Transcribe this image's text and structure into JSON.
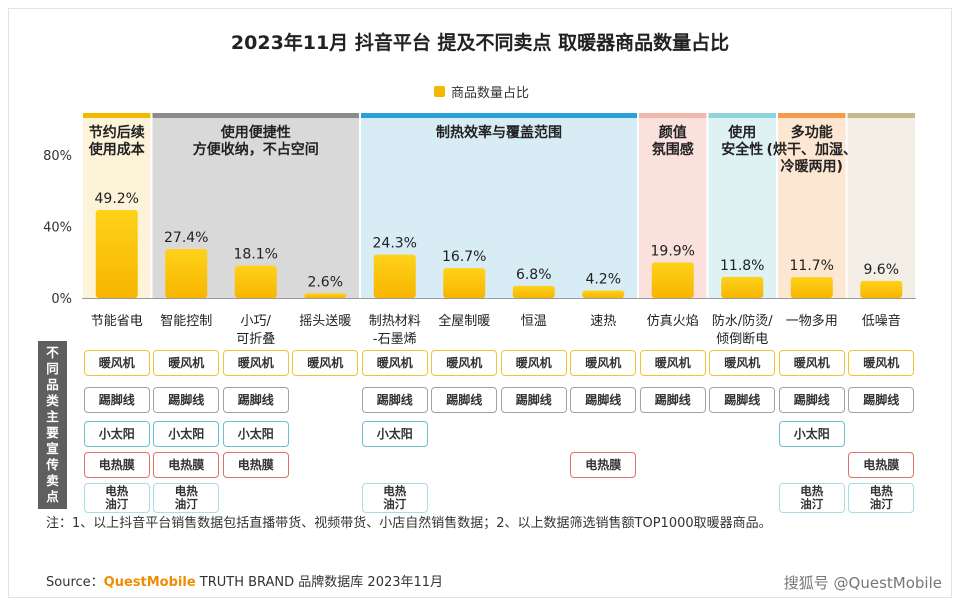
{
  "chart_data": {
    "type": "bar",
    "title": "2023年11月 抖音平台 提及不同卖点 取暖器商品数量占比",
    "categories": [
      "节能省电",
      "智能控制",
      "小巧/可折叠",
      "摇头送暖",
      "制热材料-石墨烯",
      "全屋制暖",
      "恒温",
      "速热",
      "仿真火焰",
      "防水/防烫/倾倒断电",
      "一物多用",
      "低噪音"
    ],
    "category_lines": [
      [
        "节能省电"
      ],
      [
        "智能控制"
      ],
      [
        "小巧/",
        "可折叠"
      ],
      [
        "摇头送暖"
      ],
      [
        "制热材料",
        "-石墨烯"
      ],
      [
        "全屋制暖"
      ],
      [
        "恒温"
      ],
      [
        "速热"
      ],
      [
        "仿真火焰"
      ],
      [
        "防水/防烫/",
        "倾倒断电"
      ],
      [
        "一物多用"
      ],
      [
        "低噪音"
      ]
    ],
    "series": [
      {
        "name": "商品数量占比",
        "values": [
          49.2,
          27.4,
          18.1,
          2.6,
          24.3,
          16.7,
          6.8,
          4.2,
          19.9,
          11.8,
          11.7,
          9.6
        ]
      }
    ],
    "value_labels": [
      "49.2%",
      "27.4%",
      "18.1%",
      "2.6%",
      "24.3%",
      "16.7%",
      "6.8%",
      "4.2%",
      "19.9%",
      "11.8%",
      "11.7%",
      "9.6%"
    ],
    "yticks": [
      "80%",
      "40%",
      "0%"
    ],
    "ylim": [
      0,
      80
    ],
    "legend": "top-center",
    "groups": [
      {
        "lines": [
          "节约后续",
          "使用成本"
        ],
        "start": 0,
        "end": 0,
        "bg": "#fdf3d9",
        "bar": "#f5b800"
      },
      {
        "lines": [
          "使用便捷性",
          "方便收纳，不占空间"
        ],
        "start": 1,
        "end": 3,
        "bg": "#d9d9d9",
        "bar": "#8c8c8c"
      },
      {
        "lines": [
          "制热效率与覆盖范围"
        ],
        "start": 4,
        "end": 7,
        "bg": "#d8ecf5",
        "bar": "#29a0d8"
      },
      {
        "lines": [
          "颜值",
          "氛围感"
        ],
        "start": 8,
        "end": 8,
        "bg": "#fbe1dc",
        "bar": "#f2b8ac"
      },
      {
        "lines": [
          "使用",
          "安全性"
        ],
        "start": 9,
        "end": 9,
        "bg": "#def1f3",
        "bar": "#8fd3dc"
      },
      {
        "lines": [
          "多功能",
          "(烘干、加湿、",
          "冷暖两用)"
        ],
        "start": 10,
        "end": 10,
        "bg": "#fde6d2",
        "bar": "#f39a4c"
      },
      {
        "lines": [
          ""
        ],
        "start": 11,
        "end": 11,
        "bg": "#f3efe6",
        "bar": "#c7b98c"
      }
    ]
  },
  "tag_rows": [
    {
      "kind": "fengji",
      "label": "暖风机",
      "columns": [
        0,
        1,
        2,
        3,
        4,
        5,
        6,
        7,
        8,
        9,
        10,
        11
      ]
    },
    {
      "kind": "jiaoxian",
      "label": "踢脚线",
      "columns": [
        0,
        1,
        2,
        4,
        5,
        6,
        7,
        8,
        9,
        10,
        11
      ]
    },
    {
      "kind": "taiyang",
      "label": "小太阳",
      "columns": [
        0,
        1,
        2,
        4,
        10
      ]
    },
    {
      "kind": "remo",
      "label": "电热膜",
      "columns": [
        0,
        1,
        2,
        7,
        11
      ]
    },
    {
      "kind": "youting",
      "label_lines": [
        "电热",
        "油汀"
      ],
      "columns": [
        0,
        1,
        4,
        10,
        11
      ]
    }
  ],
  "side_label": "不同品类主要宣传卖点",
  "note": "注：1、以上抖音平台销售数据包括直播带货、视频带货、小店自然销售数据；2、以上数据筛选销售额TOP1000取暖器商品。",
  "source": {
    "prefix": "Source：",
    "brand": "QuestMobile",
    "suffix": " TRUTH BRAND 品牌数据库 2023年11月"
  },
  "footer_right": "搜狐号 @QuestMobile"
}
